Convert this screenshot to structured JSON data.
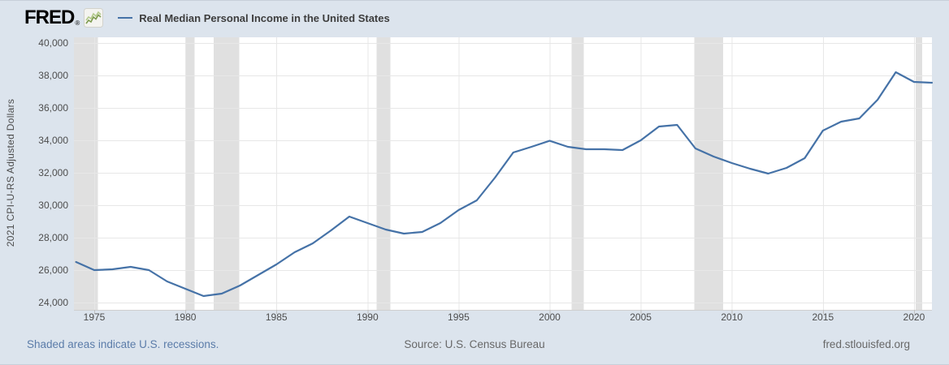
{
  "header": {
    "logo_text": "FRED",
    "logo_registered": "®"
  },
  "chart_data": {
    "type": "line",
    "title": "Real Median Personal Income in the United States",
    "series_name": "Real Median Personal Income in the United States",
    "xlabel": "",
    "ylabel": "2021 CPI-U-RS Adjusted Dollars",
    "x": [
      1974,
      1975,
      1976,
      1977,
      1978,
      1979,
      1980,
      1981,
      1982,
      1983,
      1984,
      1985,
      1986,
      1987,
      1988,
      1989,
      1990,
      1991,
      1992,
      1993,
      1994,
      1995,
      1996,
      1997,
      1998,
      1999,
      2000,
      2001,
      2002,
      2003,
      2004,
      2005,
      2006,
      2007,
      2008,
      2009,
      2010,
      2011,
      2012,
      2013,
      2014,
      2015,
      2016,
      2017,
      2018,
      2019,
      2020,
      2021
    ],
    "values": [
      26500,
      26000,
      26050,
      26200,
      26000,
      25300,
      24850,
      24400,
      24550,
      25050,
      25700,
      26350,
      27100,
      27650,
      28450,
      29300,
      28900,
      28500,
      28250,
      28350,
      28900,
      29700,
      30300,
      31700,
      33250,
      33600,
      33970,
      33600,
      33450,
      33450,
      33400,
      34000,
      34850,
      34950,
      33500,
      33000,
      32600,
      32250,
      31950,
      32300,
      32900,
      34600,
      35150,
      35350,
      36500,
      38200,
      37600,
      37550
    ],
    "ylim": [
      24000,
      40000
    ],
    "xlim": [
      1974,
      2021
    ],
    "y_ticks": [
      24000,
      26000,
      28000,
      30000,
      32000,
      34000,
      36000,
      38000,
      40000
    ],
    "x_ticks": [
      1975,
      1980,
      1985,
      1990,
      1995,
      2000,
      2005,
      2010,
      2015,
      2020
    ],
    "grid": true,
    "legend_position": "top-left",
    "line_color": "#4572a7",
    "recession_band_color": "#e0e0e0",
    "recession_bands": [
      [
        1973.8,
        1975.2
      ],
      [
        1980.0,
        1980.5
      ],
      [
        1981.55,
        1982.95
      ],
      [
        1990.5,
        1991.25
      ],
      [
        2001.2,
        2001.87
      ],
      [
        2007.95,
        2009.53
      ],
      [
        2020.1,
        2020.45
      ]
    ]
  },
  "footer": {
    "recessions_note": "Shaded areas indicate U.S. recessions.",
    "source": "Source: U.S. Census Bureau",
    "site": "fred.stlouisfed.org"
  },
  "colors": {
    "background": "#dce4ed",
    "plot_background": "#ffffff",
    "gridline": "#e7e7e7",
    "axis_line": "#cfcfcf",
    "tick_mark": "#c0c0c0",
    "recession_band": "#e0e0e0",
    "line": "#4572a7",
    "axis_text": "#4d4d4d",
    "footer_link": "#5b7ca9",
    "footer_text": "#686868",
    "logo": "#000000",
    "sparkline_green": "#7d9b4e"
  }
}
